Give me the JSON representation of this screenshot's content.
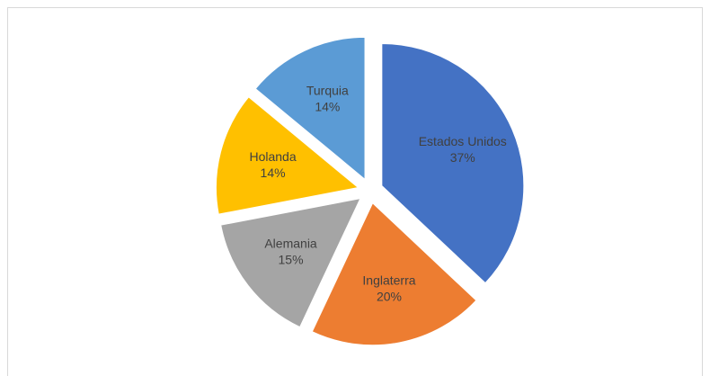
{
  "chart_data": {
    "type": "pie",
    "categories": [
      "Estados Unidos",
      "Inglaterra",
      "Alemania",
      "Holanda",
      "Turquia"
    ],
    "values": [
      37,
      20,
      15,
      14,
      14
    ],
    "value_labels": [
      "37%",
      "20%",
      "15%",
      "14%",
      "14%"
    ],
    "colors": [
      "#4472c4",
      "#ed7d31",
      "#a5a5a5",
      "#ffc000",
      "#5b9bd5"
    ],
    "exploded": true
  }
}
